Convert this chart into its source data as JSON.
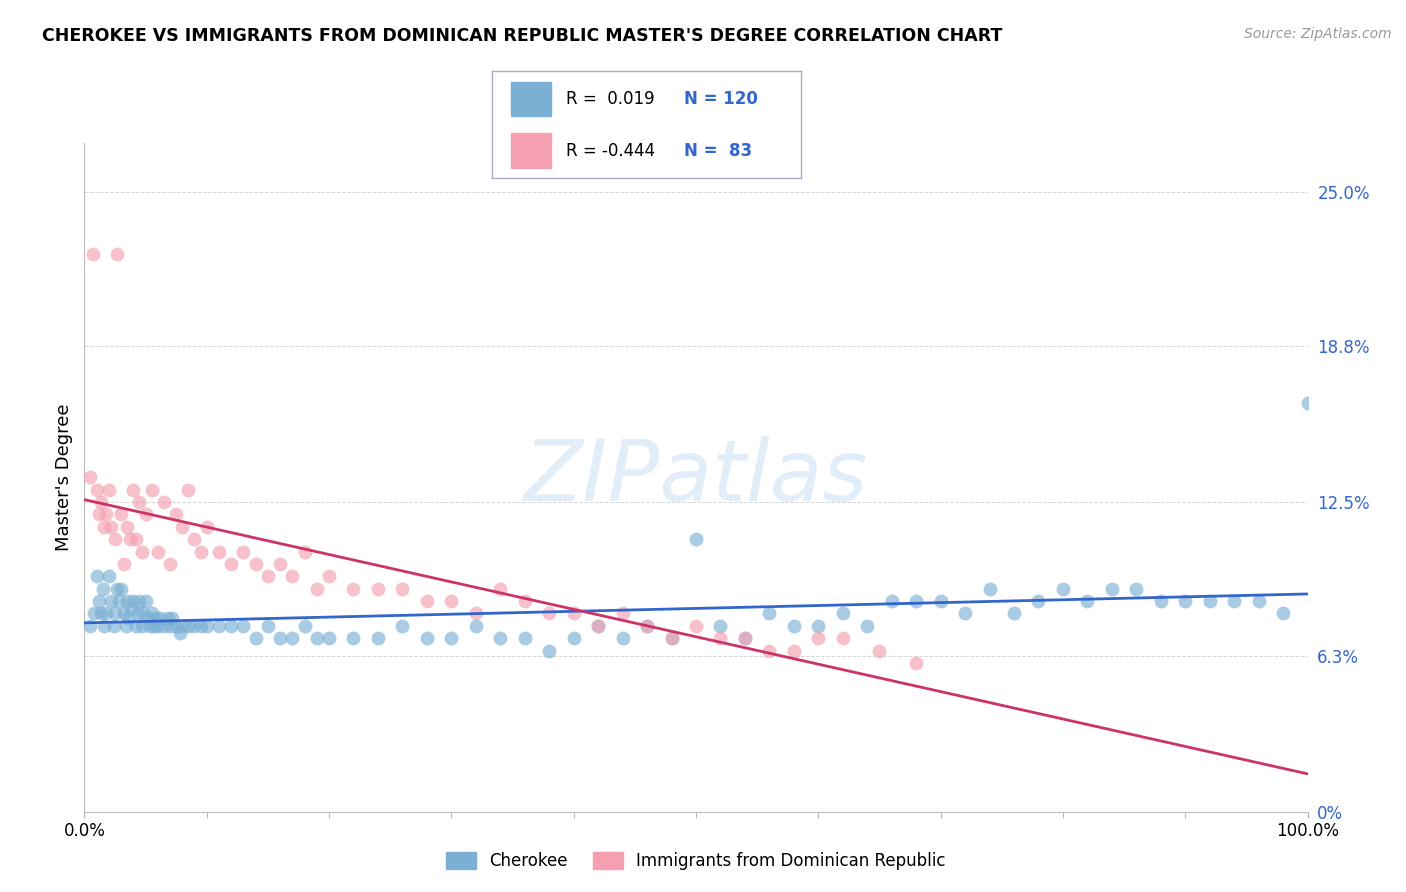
{
  "title": "CHEROKEE VS IMMIGRANTS FROM DOMINICAN REPUBLIC MASTER'S DEGREE CORRELATION CHART",
  "source_text": "Source: ZipAtlas.com",
  "ylabel": "Master's Degree",
  "watermark": "ZIPatlas",
  "xlim": [
    0.0,
    100.0
  ],
  "ylim": [
    0.0,
    27.0
  ],
  "blue_color": "#7BAFD4",
  "pink_color": "#F4A0B0",
  "blue_line_color": "#3366CC",
  "pink_line_color": "#CC3366",
  "legend_R1": " 0.019",
  "legend_N1": "120",
  "legend_R2": "-0.444",
  "legend_N2": " 83",
  "background_color": "#FFFFFF",
  "grid_color": "#CCCCCC",
  "ytick_vals": [
    0.0,
    6.3,
    12.5,
    18.8,
    25.0
  ],
  "ytick_labels": [
    "0%",
    "6.3%",
    "12.5%",
    "18.8%",
    "25.0%"
  ],
  "blue_x": [
    0.5,
    0.8,
    1.0,
    1.2,
    1.4,
    1.5,
    1.6,
    1.8,
    2.0,
    2.2,
    2.4,
    2.5,
    2.7,
    2.8,
    3.0,
    3.2,
    3.4,
    3.5,
    3.6,
    3.8,
    4.0,
    4.2,
    4.4,
    4.5,
    4.7,
    4.8,
    5.0,
    5.2,
    5.4,
    5.5,
    5.7,
    5.8,
    6.0,
    6.2,
    6.5,
    6.8,
    7.0,
    7.2,
    7.5,
    7.8,
    8.0,
    8.5,
    9.0,
    9.5,
    10.0,
    11.0,
    12.0,
    13.0,
    14.0,
    15.0,
    16.0,
    17.0,
    18.0,
    19.0,
    20.0,
    22.0,
    24.0,
    26.0,
    28.0,
    30.0,
    32.0,
    34.0,
    36.0,
    38.0,
    40.0,
    42.0,
    44.0,
    46.0,
    48.0,
    50.0,
    52.0,
    54.0,
    56.0,
    58.0,
    60.0,
    62.0,
    64.0,
    66.0,
    68.0,
    70.0,
    72.0,
    74.0,
    76.0,
    78.0,
    80.0,
    82.0,
    84.0,
    86.0,
    88.0,
    90.0,
    92.0,
    94.0,
    96.0,
    98.0,
    100.0
  ],
  "blue_y": [
    7.5,
    8.0,
    9.5,
    8.5,
    8.0,
    9.0,
    7.5,
    8.0,
    9.5,
    8.5,
    7.5,
    8.0,
    9.0,
    8.5,
    9.0,
    8.0,
    7.5,
    8.5,
    7.8,
    8.2,
    8.5,
    7.5,
    8.0,
    8.5,
    7.5,
    8.0,
    8.5,
    7.8,
    7.5,
    8.0,
    7.5,
    7.8,
    7.5,
    7.8,
    7.5,
    7.8,
    7.5,
    7.8,
    7.5,
    7.2,
    7.5,
    7.5,
    7.5,
    7.5,
    7.5,
    7.5,
    7.5,
    7.5,
    7.0,
    7.5,
    7.0,
    7.0,
    7.5,
    7.0,
    7.0,
    7.0,
    7.0,
    7.5,
    7.0,
    7.0,
    7.5,
    7.0,
    7.0,
    6.5,
    7.0,
    7.5,
    7.0,
    7.5,
    7.0,
    11.0,
    7.5,
    7.0,
    8.0,
    7.5,
    7.5,
    8.0,
    7.5,
    8.5,
    8.5,
    8.5,
    8.0,
    9.0,
    8.0,
    8.5,
    9.0,
    8.5,
    9.0,
    9.0,
    8.5,
    8.5,
    8.5,
    8.5,
    8.5,
    8.0,
    16.5
  ],
  "pink_x": [
    0.5,
    0.7,
    1.0,
    1.2,
    1.4,
    1.6,
    1.8,
    2.0,
    2.2,
    2.5,
    2.7,
    3.0,
    3.2,
    3.5,
    3.7,
    4.0,
    4.2,
    4.5,
    4.7,
    5.0,
    5.5,
    6.0,
    6.5,
    7.0,
    7.5,
    8.0,
    8.5,
    9.0,
    9.5,
    10.0,
    11.0,
    12.0,
    13.0,
    14.0,
    15.0,
    16.0,
    17.0,
    18.0,
    19.0,
    20.0,
    22.0,
    24.0,
    26.0,
    28.0,
    30.0,
    32.0,
    34.0,
    36.0,
    38.0,
    40.0,
    42.0,
    44.0,
    46.0,
    48.0,
    50.0,
    52.0,
    54.0,
    56.0,
    58.0,
    60.0,
    62.0,
    65.0,
    68.0
  ],
  "pink_y": [
    13.5,
    22.5,
    13.0,
    12.0,
    12.5,
    11.5,
    12.0,
    13.0,
    11.5,
    11.0,
    22.5,
    12.0,
    10.0,
    11.5,
    11.0,
    13.0,
    11.0,
    12.5,
    10.5,
    12.0,
    13.0,
    10.5,
    12.5,
    10.0,
    12.0,
    11.5,
    13.0,
    11.0,
    10.5,
    11.5,
    10.5,
    10.0,
    10.5,
    10.0,
    9.5,
    10.0,
    9.5,
    10.5,
    9.0,
    9.5,
    9.0,
    9.0,
    9.0,
    8.5,
    8.5,
    8.0,
    9.0,
    8.5,
    8.0,
    8.0,
    7.5,
    8.0,
    7.5,
    7.0,
    7.5,
    7.0,
    7.0,
    6.5,
    6.5,
    7.0,
    7.0,
    6.5,
    6.0
  ]
}
